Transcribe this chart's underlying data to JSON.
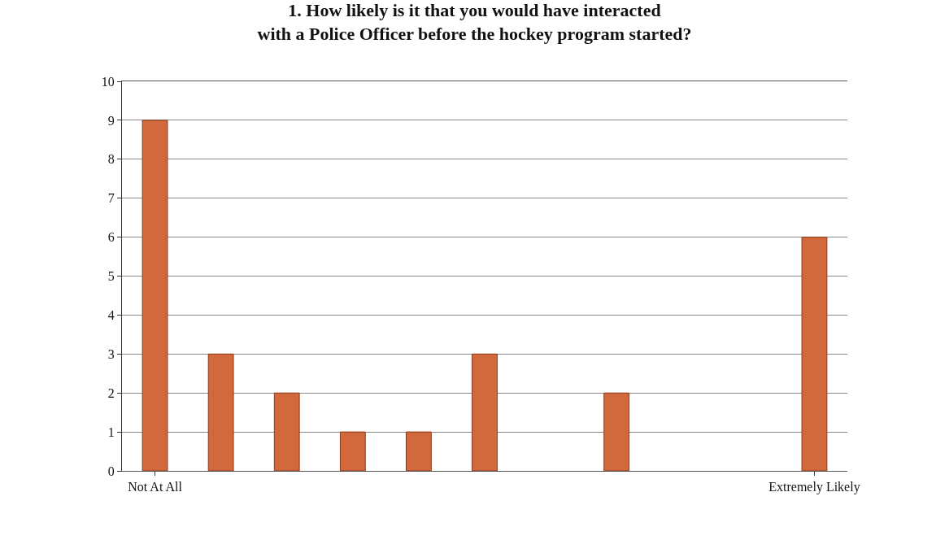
{
  "chart_data": {
    "type": "bar",
    "title": "1. How likely is it that you would have interacted with a Police Officer before the hockey program started?",
    "categories": [
      "Not At All",
      null,
      null,
      null,
      null,
      null,
      null,
      null,
      null,
      null,
      "Extremely Likely"
    ],
    "values": [
      9,
      3,
      2,
      1,
      1,
      3,
      0,
      2,
      0,
      0,
      6
    ],
    "color": "#d2693c",
    "ylim": [
      0,
      10
    ],
    "yticks": [
      0,
      1,
      2,
      3,
      4,
      5,
      6,
      7,
      8,
      9,
      10
    ],
    "grid": "y"
  }
}
